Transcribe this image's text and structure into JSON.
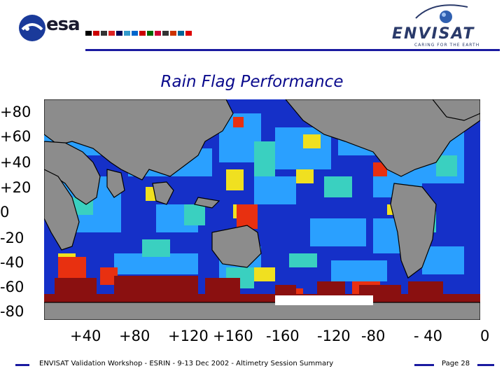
{
  "header": {
    "esa_logo_text": "esa",
    "envisat_logo_text": "ENVISAT",
    "envisat_tagline": "CARING FOR THE EARTH"
  },
  "title": "Rain Flag Performance",
  "map": {
    "y_labels": [
      "+80",
      "+60",
      "+40",
      "+20",
      "0",
      "-20",
      "-40",
      "-60",
      "-80"
    ],
    "x_labels": [
      "+40",
      "+80",
      "+120",
      "+160",
      "-160",
      "-120",
      "-80",
      "- 40",
      "0"
    ],
    "colors": {
      "ocean_low": "#1530c8",
      "ocean_mid": "#2aa0ff",
      "moderate": "#3ad0c0",
      "high": "#f0e020",
      "very_high": "#e83010",
      "extreme": "#8a1010",
      "land": "#8c8c8c"
    }
  },
  "footer": {
    "text": "ENVISAT Validation Workshop - ESRIN - 9-13 Dec 2002 - Altimetry Session Summary",
    "page": "Page 28"
  }
}
